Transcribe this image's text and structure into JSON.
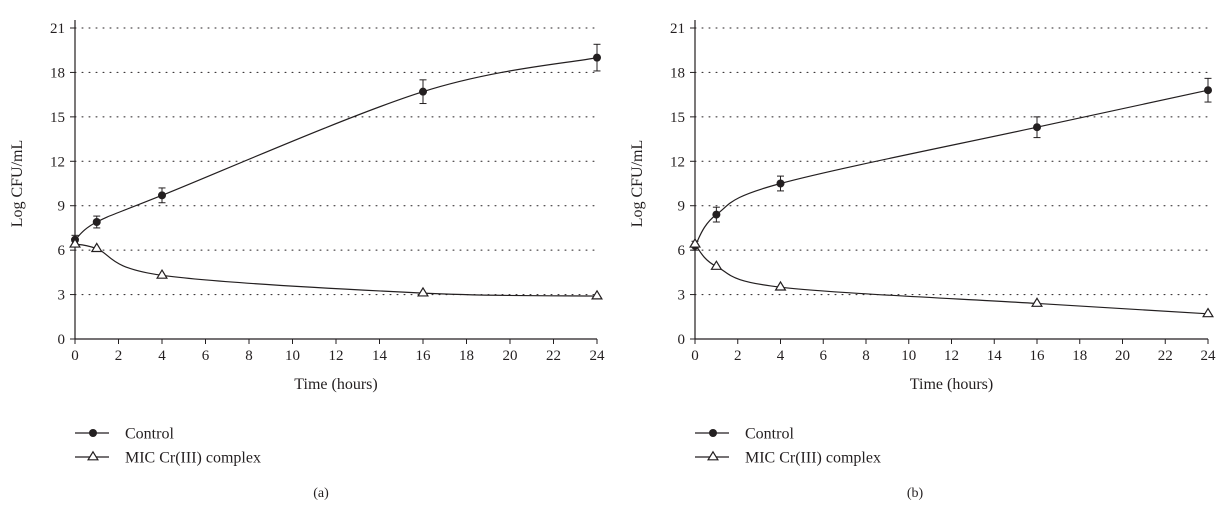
{
  "chart_data": [
    {
      "type": "line",
      "panel_label": "(a)",
      "xlabel": "Time (hours)",
      "ylabel": "Log CFU/mL",
      "xlim": [
        0,
        24
      ],
      "ylim": [
        0,
        21
      ],
      "x_ticks": [
        "0",
        "2",
        "4",
        "6",
        "8",
        "10",
        "12",
        "14",
        "16",
        "18",
        "20",
        "22",
        "24"
      ],
      "y_ticks": [
        "0",
        "3",
        "6",
        "9",
        "12",
        "15",
        "18",
        "21"
      ],
      "grid": "horizontal dotted",
      "legend_position": "below",
      "x": [
        0,
        1,
        4,
        16,
        24
      ],
      "series": [
        {
          "name": "Control",
          "marker": "filled-circle",
          "values": [
            6.7,
            7.9,
            9.7,
            16.7,
            19.0
          ],
          "errors": [
            0.3,
            0.4,
            0.5,
            0.8,
            0.9
          ]
        },
        {
          "name": "MIC Cr(III) complex",
          "marker": "open-triangle",
          "values": [
            6.4,
            6.1,
            4.3,
            3.1,
            2.9
          ],
          "errors": [
            0,
            0,
            0,
            0,
            0
          ]
        }
      ]
    },
    {
      "type": "line",
      "panel_label": "(b)",
      "xlabel": "Time (hours)",
      "ylabel": "Log CFU/mL",
      "xlim": [
        0,
        24
      ],
      "ylim": [
        0,
        21
      ],
      "x_ticks": [
        "0",
        "2",
        "4",
        "6",
        "8",
        "10",
        "12",
        "14",
        "16",
        "18",
        "20",
        "22",
        "24"
      ],
      "y_ticks": [
        "0",
        "3",
        "6",
        "9",
        "12",
        "15",
        "18",
        "21"
      ],
      "grid": "horizontal dotted",
      "legend_position": "below",
      "x": [
        0,
        1,
        4,
        16,
        24
      ],
      "series": [
        {
          "name": "Control",
          "marker": "filled-circle",
          "values": [
            6.3,
            8.4,
            10.5,
            14.3,
            16.8
          ],
          "errors": [
            0.3,
            0.5,
            0.5,
            0.7,
            0.8
          ]
        },
        {
          "name": "MIC Cr(III) complex",
          "marker": "open-triangle",
          "values": [
            6.4,
            4.9,
            3.5,
            2.4,
            1.7
          ],
          "errors": [
            0,
            0,
            0,
            0,
            0
          ]
        }
      ]
    }
  ]
}
